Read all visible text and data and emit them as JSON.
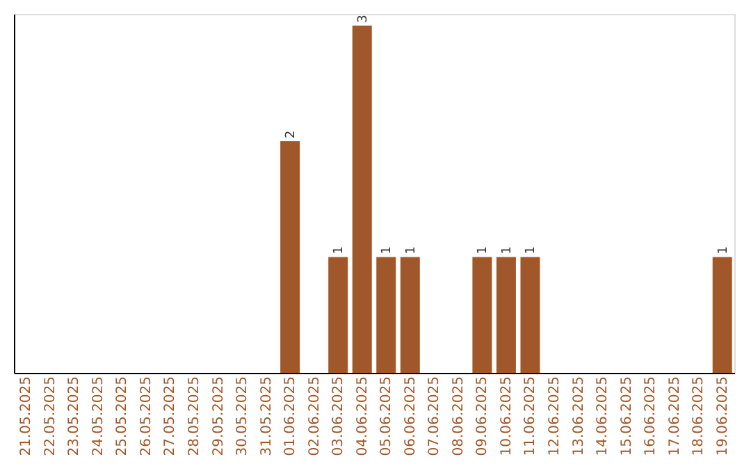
{
  "chart_data": {
    "type": "bar",
    "categories": [
      "21.05.2025",
      "22.05.2025",
      "23.05.2025",
      "24.05.2025",
      "25.05.2025",
      "26.05.2025",
      "27.05.2025",
      "28.05.2025",
      "29.05.2025",
      "30.05.2025",
      "31.05.2025",
      "01.06.2025",
      "02.06.2025",
      "03.06.2025",
      "04.06.2025",
      "05.06.2025",
      "06.06.2025",
      "07.06.2025",
      "08.06.2025",
      "09.06.2025",
      "10.06.2025",
      "11.06.2025",
      "12.06.2025",
      "13.06.2025",
      "14.06.2025",
      "15.06.2025",
      "16.06.2025",
      "17.06.2025",
      "18.06.2025",
      "19.06.2025"
    ],
    "values": [
      0,
      0,
      0,
      0,
      0,
      0,
      0,
      0,
      0,
      0,
      0,
      2,
      0,
      1,
      3,
      1,
      1,
      0,
      0,
      1,
      1,
      1,
      0,
      0,
      0,
      0,
      0,
      0,
      0,
      1
    ],
    "value_labels": [
      null,
      null,
      null,
      null,
      null,
      null,
      null,
      null,
      null,
      null,
      null,
      "2",
      null,
      "1",
      "3",
      "1",
      "1",
      null,
      null,
      "1",
      "1",
      "1",
      null,
      null,
      null,
      null,
      null,
      null,
      null,
      "1"
    ],
    "color": "#a0582a",
    "ylim": [
      0,
      3.1
    ],
    "tick_labels": "x",
    "grid": false
  }
}
